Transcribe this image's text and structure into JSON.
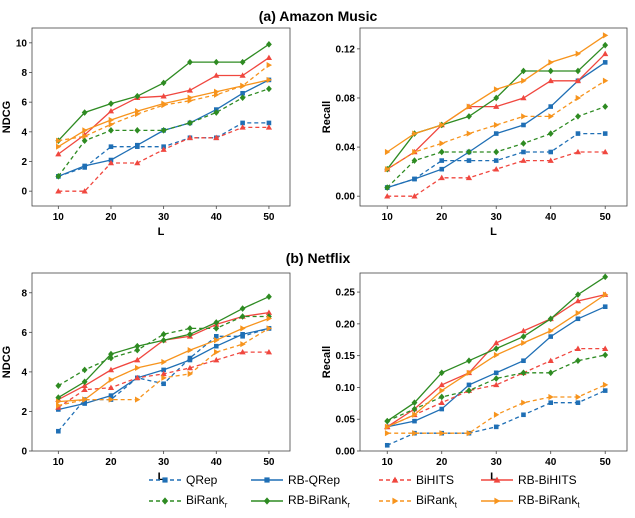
{
  "figure": {
    "panel_titles": [
      "(a) Amazon Music",
      "(b) Netflix"
    ]
  },
  "legend": [
    {
      "label": "QRep",
      "sub": "",
      "series": "QRep"
    },
    {
      "label": "RB-QRep",
      "sub": "",
      "series": "RB-QRep"
    },
    {
      "label": "BiHITS",
      "sub": "",
      "series": "BiHITS"
    },
    {
      "label": "RB-BiHITS",
      "sub": "",
      "series": "RB-BiHITS"
    },
    {
      "label": "BiRank",
      "sub": "r",
      "series": "BiRank_r"
    },
    {
      "label": "RB-BiRank",
      "sub": "r",
      "series": "RB-BiRank_r"
    },
    {
      "label": "BiRank",
      "sub": "t",
      "series": "BiRank_t"
    },
    {
      "label": "RB-BiRank",
      "sub": "t",
      "series": "RB-BiRank_t"
    }
  ],
  "series_style": {
    "QRep": {
      "color": "#1f6fb5",
      "dash": true,
      "marker": "square"
    },
    "RB-QRep": {
      "color": "#1f6fb5",
      "dash": false,
      "marker": "square"
    },
    "BiHITS": {
      "color": "#f0473f",
      "dash": true,
      "marker": "triangle"
    },
    "RB-BiHITS": {
      "color": "#f0473f",
      "dash": false,
      "marker": "triangle"
    },
    "BiRank_r": {
      "color": "#2e8b22",
      "dash": true,
      "marker": "diamond"
    },
    "RB-BiRank_r": {
      "color": "#2e8b22",
      "dash": false,
      "marker": "diamond"
    },
    "BiRank_t": {
      "color": "#f7941d",
      "dash": true,
      "marker": "triangle-right"
    },
    "RB-BiRank_t": {
      "color": "#f7941d",
      "dash": false,
      "marker": "triangle-right"
    }
  },
  "chart_data": [
    {
      "type": "line",
      "panel": "(a) Amazon Music",
      "xlabel": "L",
      "ylabel": "NDCG",
      "x": [
        10,
        15,
        20,
        25,
        30,
        35,
        40,
        45,
        50
      ],
      "xticks": [
        "10",
        "20",
        "30",
        "40",
        "50"
      ],
      "yticks": [
        "0",
        "2",
        "4",
        "6",
        "8",
        "10"
      ],
      "xlim": [
        5,
        54
      ],
      "ylim": [
        -1,
        11
      ],
      "series": [
        {
          "name": "QRep",
          "values": [
            1.0,
            1.6,
            3.0,
            3.0,
            3.0,
            3.6,
            3.6,
            4.6,
            4.6
          ]
        },
        {
          "name": "RB-QRep",
          "values": [
            1.0,
            1.7,
            2.1,
            3.1,
            4.1,
            4.6,
            5.5,
            6.6,
            7.5
          ]
        },
        {
          "name": "BiHITS",
          "values": [
            0.0,
            0.0,
            1.9,
            1.9,
            2.8,
            3.6,
            3.6,
            4.3,
            4.3
          ]
        },
        {
          "name": "RB-BiHITS",
          "values": [
            2.5,
            3.8,
            5.4,
            6.3,
            6.4,
            6.8,
            7.8,
            7.8,
            9.0
          ]
        },
        {
          "name": "BiRank_r",
          "values": [
            1.0,
            3.4,
            4.1,
            4.1,
            4.1,
            4.6,
            5.3,
            6.3,
            6.9
          ]
        },
        {
          "name": "RB-BiRank_r",
          "values": [
            3.4,
            5.3,
            5.9,
            6.4,
            7.3,
            8.7,
            8.7,
            8.7,
            9.9
          ]
        },
        {
          "name": "BiRank_t",
          "values": [
            3.4,
            3.7,
            4.5,
            5.2,
            5.8,
            6.1,
            6.5,
            7.1,
            8.5
          ]
        },
        {
          "name": "RB-BiRank_t",
          "values": [
            3.0,
            4.1,
            4.8,
            5.4,
            5.9,
            6.3,
            6.7,
            7.1,
            7.5
          ]
        }
      ]
    },
    {
      "type": "line",
      "panel": "(a) Amazon Music",
      "xlabel": "L",
      "ylabel": "Recall",
      "x": [
        10,
        15,
        20,
        25,
        30,
        35,
        40,
        45,
        50
      ],
      "xticks": [
        "10",
        "20",
        "30",
        "40",
        "50"
      ],
      "yticks": [
        "0.00",
        "0.04",
        "0.08",
        "0.12"
      ],
      "xlim": [
        5,
        54
      ],
      "ylim": [
        -0.008,
        0.137
      ],
      "series": [
        {
          "name": "QRep",
          "values": [
            0.007,
            0.014,
            0.029,
            0.029,
            0.029,
            0.036,
            0.036,
            0.051,
            0.051
          ]
        },
        {
          "name": "RB-QRep",
          "values": [
            0.007,
            0.014,
            0.022,
            0.036,
            0.051,
            0.058,
            0.073,
            0.094,
            0.109
          ]
        },
        {
          "name": "BiHITS",
          "values": [
            0.0,
            0.0,
            0.015,
            0.015,
            0.022,
            0.029,
            0.029,
            0.036,
            0.036
          ]
        },
        {
          "name": "RB-BiHITS",
          "values": [
            0.022,
            0.036,
            0.058,
            0.073,
            0.073,
            0.08,
            0.094,
            0.094,
            0.116
          ]
        },
        {
          "name": "BiRank_r",
          "values": [
            0.007,
            0.029,
            0.036,
            0.036,
            0.036,
            0.043,
            0.051,
            0.065,
            0.073
          ]
        },
        {
          "name": "RB-BiRank_r",
          "values": [
            0.022,
            0.051,
            0.058,
            0.065,
            0.08,
            0.102,
            0.102,
            0.102,
            0.123
          ]
        },
        {
          "name": "BiRank_t",
          "values": [
            0.022,
            0.036,
            0.043,
            0.051,
            0.058,
            0.065,
            0.065,
            0.08,
            0.094
          ]
        },
        {
          "name": "RB-BiRank_t",
          "values": [
            0.036,
            0.051,
            0.058,
            0.073,
            0.087,
            0.094,
            0.109,
            0.116,
            0.131
          ]
        }
      ]
    },
    {
      "type": "line",
      "panel": "(b) Netflix",
      "xlabel": "L",
      "ylabel": "NDCG",
      "x": [
        10,
        15,
        20,
        25,
        30,
        35,
        40,
        45,
        50
      ],
      "xticks": [
        "10",
        "20",
        "30",
        "40",
        "50"
      ],
      "yticks": [
        "0",
        "2",
        "4",
        "6",
        "8"
      ],
      "xlim": [
        5,
        54
      ],
      "ylim": [
        0,
        9
      ],
      "series": [
        {
          "name": "QRep",
          "values": [
            1.0,
            2.6,
            2.6,
            3.7,
            3.4,
            4.7,
            5.8,
            5.8,
            6.2
          ]
        },
        {
          "name": "RB-QRep",
          "values": [
            2.1,
            2.4,
            2.8,
            3.7,
            4.1,
            4.6,
            5.3,
            5.9,
            6.2
          ]
        },
        {
          "name": "BiHITS",
          "values": [
            2.2,
            3.1,
            3.2,
            3.7,
            3.9,
            4.2,
            4.6,
            5.0,
            5.0
          ]
        },
        {
          "name": "RB-BiHITS",
          "values": [
            2.6,
            3.3,
            4.1,
            4.6,
            5.6,
            5.8,
            6.4,
            6.8,
            7.0
          ]
        },
        {
          "name": "BiRank_r",
          "values": [
            3.3,
            4.1,
            4.7,
            5.1,
            5.9,
            6.2,
            6.2,
            6.8,
            6.8
          ]
        },
        {
          "name": "RB-BiRank_r",
          "values": [
            2.7,
            3.5,
            4.9,
            5.3,
            5.6,
            5.9,
            6.5,
            7.2,
            7.8
          ]
        },
        {
          "name": "BiRank_t",
          "values": [
            2.3,
            2.6,
            2.6,
            2.6,
            3.7,
            3.9,
            5.0,
            5.4,
            6.2
          ]
        },
        {
          "name": "RB-BiRank_t",
          "values": [
            2.5,
            2.6,
            3.6,
            4.2,
            4.5,
            5.1,
            5.6,
            6.2,
            6.7
          ]
        }
      ]
    },
    {
      "type": "line",
      "panel": "(b) Netflix",
      "xlabel": "L",
      "ylabel": "Recall",
      "x": [
        10,
        15,
        20,
        25,
        30,
        35,
        40,
        45,
        50
      ],
      "xticks": [
        "10",
        "20",
        "30",
        "40",
        "50"
      ],
      "yticks": [
        "0.00",
        "0.05",
        "0.10",
        "0.15",
        "0.20",
        "0.25"
      ],
      "xlim": [
        5,
        54
      ],
      "ylim": [
        0,
        0.28
      ],
      "series": [
        {
          "name": "QRep",
          "values": [
            0.009,
            0.028,
            0.028,
            0.028,
            0.038,
            0.057,
            0.076,
            0.076,
            0.095
          ]
        },
        {
          "name": "RB-QRep",
          "values": [
            0.038,
            0.047,
            0.066,
            0.104,
            0.123,
            0.142,
            0.18,
            0.208,
            0.227
          ]
        },
        {
          "name": "BiHITS",
          "values": [
            0.038,
            0.057,
            0.076,
            0.095,
            0.104,
            0.123,
            0.142,
            0.161,
            0.161
          ]
        },
        {
          "name": "RB-BiHITS",
          "values": [
            0.038,
            0.066,
            0.104,
            0.123,
            0.17,
            0.189,
            0.208,
            0.236,
            0.246
          ]
        },
        {
          "name": "BiRank_r",
          "values": [
            0.047,
            0.066,
            0.085,
            0.095,
            0.114,
            0.123,
            0.123,
            0.142,
            0.151
          ]
        },
        {
          "name": "RB-BiRank_r",
          "values": [
            0.047,
            0.076,
            0.123,
            0.142,
            0.161,
            0.18,
            0.208,
            0.246,
            0.274
          ]
        },
        {
          "name": "BiRank_t",
          "values": [
            0.028,
            0.028,
            0.028,
            0.028,
            0.057,
            0.076,
            0.085,
            0.085,
            0.104
          ]
        },
        {
          "name": "RB-BiRank_t",
          "values": [
            0.038,
            0.057,
            0.095,
            0.123,
            0.151,
            0.17,
            0.189,
            0.217,
            0.246
          ]
        }
      ]
    }
  ]
}
